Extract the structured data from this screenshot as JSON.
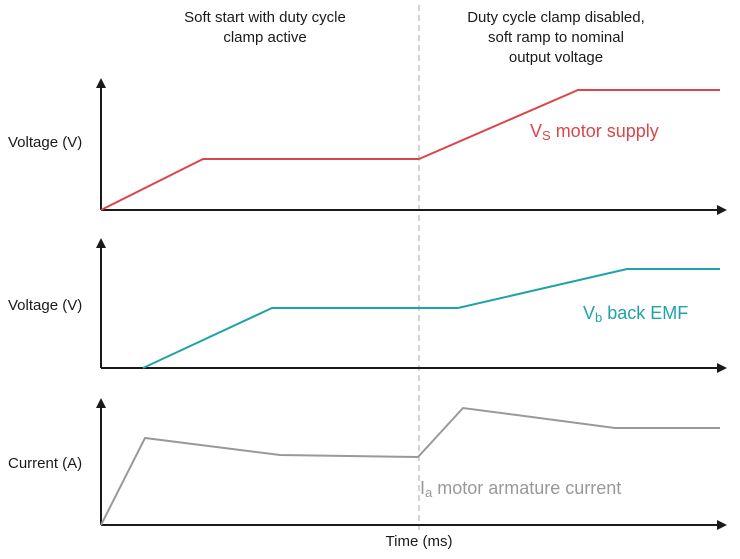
{
  "annotations": [
    {
      "lines": [
        "Soft start with duty cycle",
        "clamp active"
      ]
    },
    {
      "lines": [
        "Duty cycle clamp disabled,",
        "soft ramp to nominal",
        "output voltage"
      ]
    }
  ],
  "panels": [
    {
      "y_label": "Voltage (V)",
      "series_label": {
        "symbol": "V",
        "subscript": "S",
        "text": " motor supply"
      }
    },
    {
      "y_label": "Voltage (V)",
      "series_label": {
        "symbol": "V",
        "subscript": "b",
        "text": " back EMF"
      }
    },
    {
      "y_label": "Current (A)",
      "series_label": {
        "symbol": "I",
        "subscript": "a",
        "text": " motor armature current"
      }
    }
  ],
  "x_label": "Time (ms)"
}
